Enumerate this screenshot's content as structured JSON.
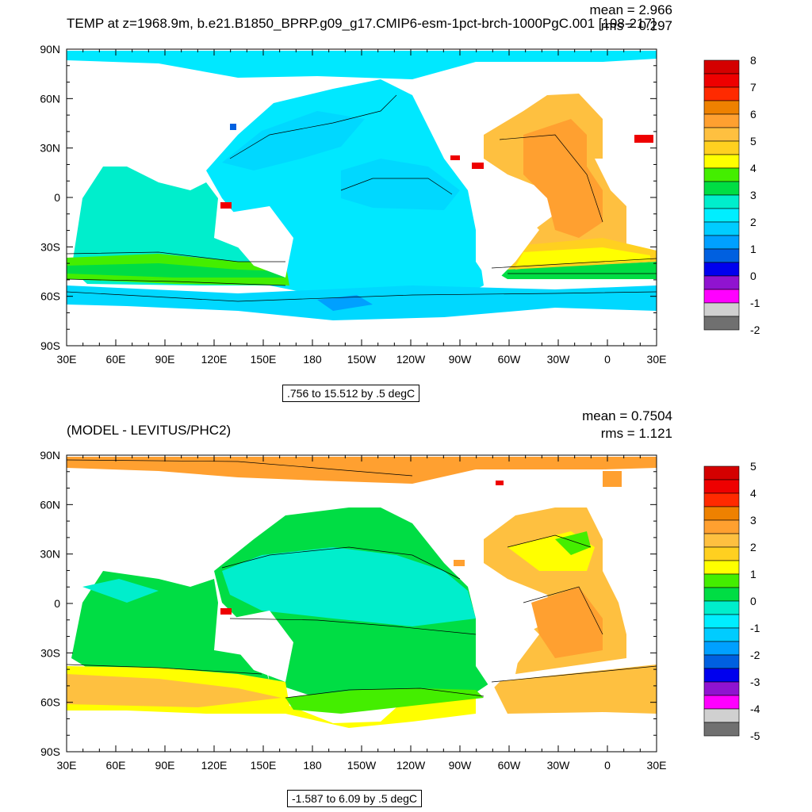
{
  "panels": [
    {
      "title": "TEMP at z=1968.9m, b.e21.B1850_BPRP.g09_g17.CMIP6-esm-1pct-brch-1000PgC.001 [198-217]",
      "mean_text": "mean = 2.966",
      "rms_text": "rms = 0.297",
      "contour_info": ".756 to 15.512 by .5 degC",
      "colorbar_labels": [
        "8",
        "7",
        "6",
        "5",
        "4",
        "3",
        "2",
        "1",
        "0",
        "-1",
        "-2"
      ]
    },
    {
      "title": "(MODEL - LEVITUS/PHC2)",
      "mean_text": "mean = 0.7504",
      "rms_text": "rms = 1.121",
      "contour_info": "-1.587 to 6.09 by .5 degC",
      "colorbar_labels": [
        "5",
        "4",
        "3",
        "2",
        "1",
        "0",
        "-1",
        "-2",
        "-3",
        "-4",
        "-5"
      ]
    }
  ],
  "axes": {
    "lat_labels": [
      "90N",
      "60N",
      "30N",
      "0",
      "30S",
      "60S",
      "90S"
    ],
    "lon_labels": [
      "30E",
      "60E",
      "90E",
      "120E",
      "150E",
      "180",
      "150W",
      "120W",
      "90W",
      "60W",
      "30W",
      "0",
      "30E"
    ]
  },
  "colors": {
    "colorbar": [
      "#d40000",
      "#ee0000",
      "#ff2a00",
      "#ee8100",
      "#ffa030",
      "#fec040",
      "#ffd020",
      "#ffff00",
      "#44ee00",
      "#00dd44",
      "#00eecc",
      "#00eeff",
      "#00ccff",
      "#00a0ff",
      "#0060e0",
      "#0000ee",
      "#9013d0",
      "#ff00ff",
      "#d0d0d0",
      "#707070"
    ],
    "ocean_warm_top": "#00e8ff",
    "land": "#ffffff"
  }
}
